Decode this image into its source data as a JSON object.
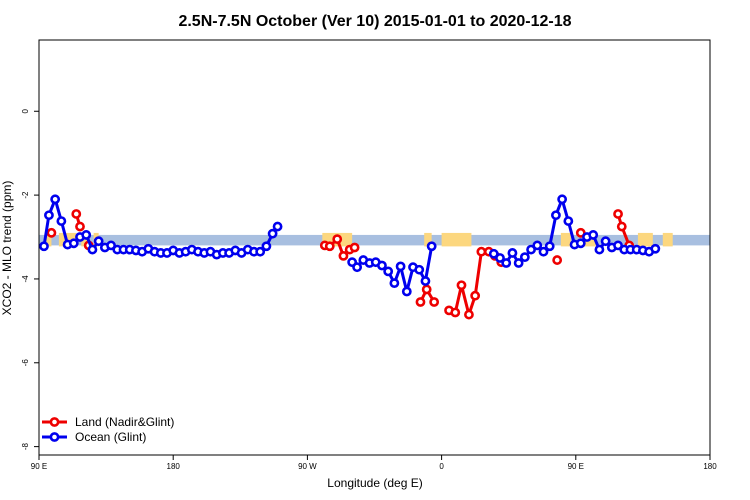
{
  "chart_data": {
    "type": "line",
    "title": "2.5N-7.5N October (Ver 10)   2015-01-01 to 2020-12-18",
    "xlabel": "Longitude (deg E)",
    "ylabel": "XCO2 - MLO trend (ppm)",
    "xlim": [
      -90,
      180
    ],
    "ylim": [
      -8.2,
      1.7
    ],
    "x_ticks": [
      {
        "value": -90,
        "label": "90 E"
      },
      {
        "value": -36,
        "label": "180"
      },
      {
        "value": 18,
        "label": "90 W"
      },
      {
        "value": 72,
        "label": "0"
      },
      {
        "value": 126,
        "label": "90 E"
      },
      {
        "value": 180,
        "label": "180"
      }
    ],
    "y_ticks": [
      0,
      -2,
      -4,
      -6,
      -8
    ],
    "land_mask": {
      "y_top": -2.95,
      "y_bottom": -3.2,
      "ocean_color": "#a8bfe0",
      "land_color": "#fcd77f",
      "land_segments": [
        [
          -87,
          -85
        ],
        [
          -82,
          -75
        ],
        [
          -73,
          -70
        ],
        [
          -68,
          -66
        ],
        [
          24,
          36
        ],
        [
          65,
          68
        ],
        [
          72,
          84
        ],
        [
          120,
          124
        ],
        [
          129,
          134
        ],
        [
          151,
          157
        ],
        [
          161,
          165
        ]
      ]
    },
    "series": [
      {
        "name": "Land (Nadir&Glint)",
        "color": "#ee0000",
        "points": [
          {
            "x": -85,
            "y": -2.9
          },
          null,
          {
            "x": -75,
            "y": -2.45
          },
          {
            "x": -73.5,
            "y": -2.75
          },
          null,
          {
            "x": -70,
            "y": -3.2
          },
          null,
          {
            "x": 25,
            "y": -3.2
          },
          {
            "x": 27,
            "y": -3.22
          },
          {
            "x": 30,
            "y": -3.05
          },
          {
            "x": 32.5,
            "y": -3.45
          },
          {
            "x": 35,
            "y": -3.3
          },
          {
            "x": 37,
            "y": -3.25
          },
          null,
          {
            "x": 63.5,
            "y": -4.55
          },
          {
            "x": 66,
            "y": -4.25
          },
          {
            "x": 69,
            "y": -4.55
          },
          null,
          {
            "x": 75,
            "y": -4.75
          },
          {
            "x": 77.5,
            "y": -4.8
          },
          {
            "x": 80,
            "y": -4.15
          },
          {
            "x": 83,
            "y": -4.85
          },
          {
            "x": 85.5,
            "y": -4.4
          },
          {
            "x": 88,
            "y": -3.35
          },
          {
            "x": 91,
            "y": -3.35
          },
          {
            "x": 93.5,
            "y": -3.45
          },
          {
            "x": 96,
            "y": -3.6
          },
          null,
          {
            "x": 118.5,
            "y": -3.55
          },
          null,
          {
            "x": 128,
            "y": -2.9
          },
          null,
          {
            "x": 143,
            "y": -2.45
          },
          {
            "x": 144.5,
            "y": -2.75
          },
          {
            "x": 147.5,
            "y": -3.2
          }
        ]
      },
      {
        "name": "Ocean (Glint)",
        "color": "#0000ee",
        "points": [
          {
            "x": -88,
            "y": -3.22
          },
          {
            "x": -86,
            "y": -2.48
          },
          {
            "x": -83.5,
            "y": -2.1
          },
          {
            "x": -81,
            "y": -2.62
          },
          {
            "x": -78.5,
            "y": -3.18
          },
          {
            "x": -76,
            "y": -3.15
          },
          {
            "x": -73.5,
            "y": -3.0
          },
          {
            "x": -71,
            "y": -2.95
          },
          {
            "x": -68.5,
            "y": -3.3
          },
          {
            "x": -66,
            "y": -3.1
          },
          {
            "x": -63.5,
            "y": -3.25
          },
          {
            "x": -61,
            "y": -3.2
          },
          {
            "x": -58.5,
            "y": -3.3
          },
          {
            "x": -56,
            "y": -3.3
          },
          {
            "x": -53.5,
            "y": -3.3
          },
          {
            "x": -51,
            "y": -3.32
          },
          {
            "x": -48.5,
            "y": -3.35
          },
          {
            "x": -46,
            "y": -3.28
          },
          {
            "x": -43.5,
            "y": -3.35
          },
          {
            "x": -41,
            "y": -3.38
          },
          {
            "x": -38.5,
            "y": -3.38
          },
          {
            "x": -36,
            "y": -3.32
          },
          {
            "x": -33.5,
            "y": -3.38
          },
          {
            "x": -31,
            "y": -3.35
          },
          {
            "x": -28.5,
            "y": -3.3
          },
          {
            "x": -26,
            "y": -3.35
          },
          {
            "x": -23.5,
            "y": -3.38
          },
          {
            "x": -21,
            "y": -3.35
          },
          {
            "x": -18.5,
            "y": -3.42
          },
          {
            "x": -16,
            "y": -3.38
          },
          {
            "x": -13.5,
            "y": -3.38
          },
          {
            "x": -11,
            "y": -3.32
          },
          {
            "x": -8.5,
            "y": -3.38
          },
          {
            "x": -6,
            "y": -3.3
          },
          {
            "x": -3.5,
            "y": -3.35
          },
          {
            "x": -1,
            "y": -3.35
          },
          {
            "x": 1.5,
            "y": -3.22
          },
          {
            "x": 4,
            "y": -2.92
          },
          {
            "x": 6,
            "y": -2.75
          },
          null,
          {
            "x": 36,
            "y": -3.6
          },
          {
            "x": 38,
            "y": -3.72
          },
          {
            "x": 40.5,
            "y": -3.55
          },
          {
            "x": 43,
            "y": -3.62
          },
          {
            "x": 45.5,
            "y": -3.6
          },
          {
            "x": 48,
            "y": -3.68
          },
          {
            "x": 50.5,
            "y": -3.82
          },
          {
            "x": 53,
            "y": -4.1
          },
          {
            "x": 55.5,
            "y": -3.7
          },
          {
            "x": 58,
            "y": -4.3
          },
          {
            "x": 60.5,
            "y": -3.72
          },
          {
            "x": 63,
            "y": -3.78
          },
          {
            "x": 65.5,
            "y": -4.05
          },
          {
            "x": 68,
            "y": -3.22
          },
          null,
          {
            "x": 93,
            "y": -3.4
          },
          {
            "x": 95.5,
            "y": -3.5
          },
          {
            "x": 98,
            "y": -3.62
          },
          {
            "x": 100.5,
            "y": -3.38
          },
          {
            "x": 103,
            "y": -3.62
          },
          {
            "x": 105.5,
            "y": -3.48
          },
          {
            "x": 108,
            "y": -3.3
          },
          {
            "x": 110.5,
            "y": -3.2
          },
          {
            "x": 113,
            "y": -3.35
          },
          {
            "x": 115.5,
            "y": -3.22
          },
          {
            "x": 118,
            "y": -2.48
          },
          {
            "x": 120.5,
            "y": -2.1
          },
          {
            "x": 123,
            "y": -2.62
          },
          {
            "x": 125.5,
            "y": -3.18
          },
          {
            "x": 128,
            "y": -3.15
          },
          {
            "x": 130.5,
            "y": -3.0
          },
          {
            "x": 133,
            "y": -2.95
          },
          {
            "x": 135.5,
            "y": -3.3
          },
          {
            "x": 138,
            "y": -3.1
          },
          {
            "x": 140.5,
            "y": -3.25
          },
          {
            "x": 143,
            "y": -3.2
          },
          {
            "x": 145.5,
            "y": -3.3
          },
          {
            "x": 148,
            "y": -3.3
          },
          {
            "x": 150.5,
            "y": -3.3
          },
          {
            "x": 153,
            "y": -3.32
          },
          {
            "x": 155.5,
            "y": -3.35
          },
          {
            "x": 158,
            "y": -3.28
          }
        ]
      }
    ],
    "legend": {
      "position": "bottom-left"
    }
  }
}
